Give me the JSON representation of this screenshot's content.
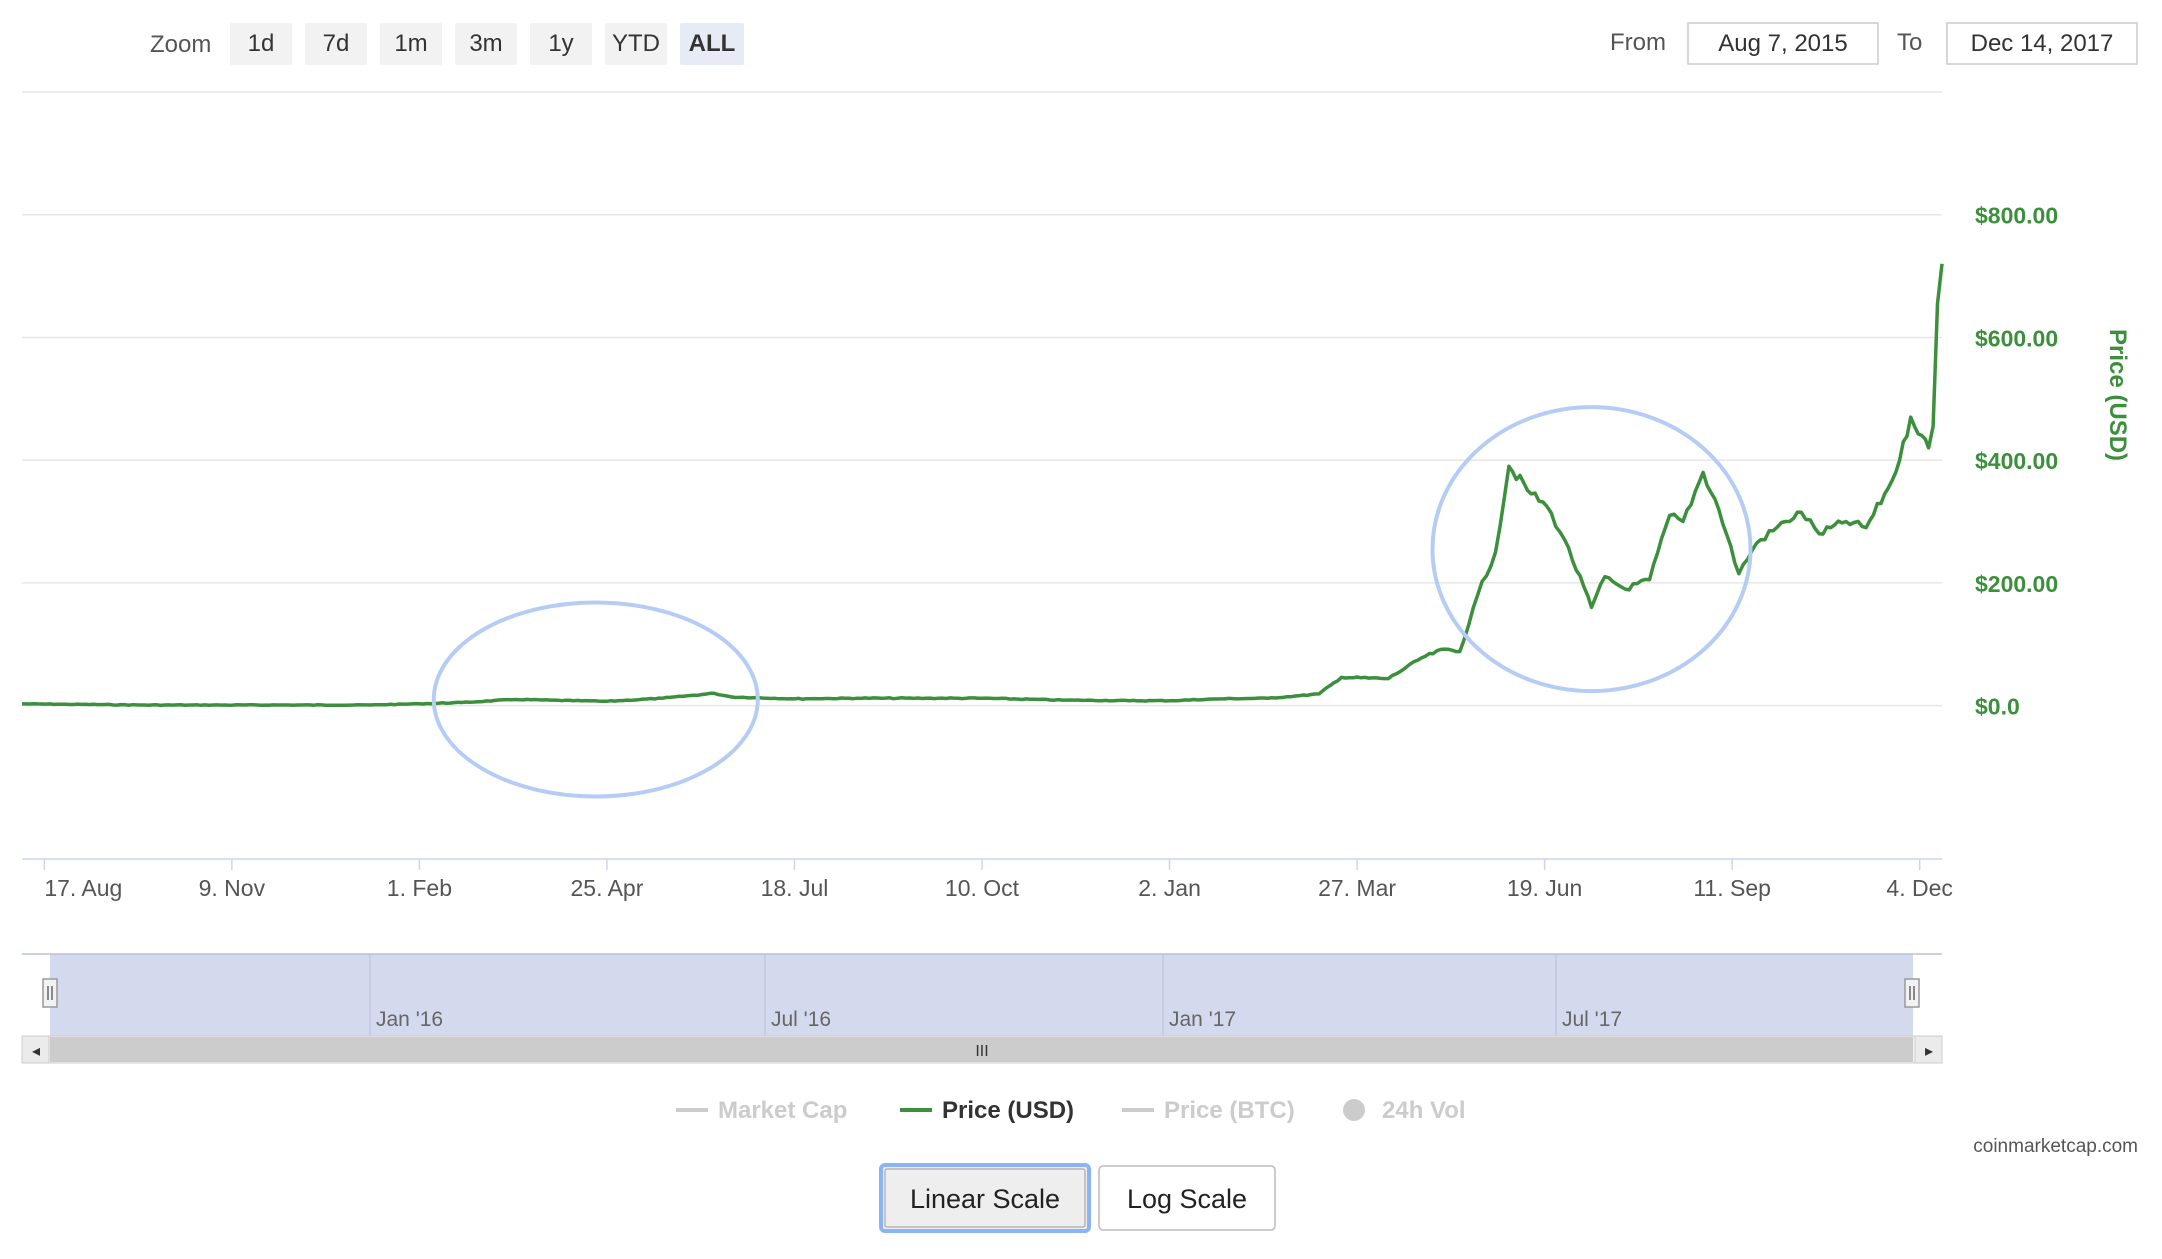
{
  "zoom": {
    "label": "Zoom",
    "buttons": [
      "1d",
      "7d",
      "1m",
      "3m",
      "1y",
      "YTD",
      "ALL"
    ],
    "selected": "ALL"
  },
  "range": {
    "from_label": "From",
    "from_value": "Aug 7, 2015",
    "to_label": "To",
    "to_value": "Dec 14, 2017"
  },
  "navigator": {
    "labels": [
      "Jan '16",
      "Jul '16",
      "Jan '17",
      "Jul '17"
    ],
    "scroll_thumb": "III",
    "scroll_left": "◂",
    "scroll_right": "▸"
  },
  "legend": [
    {
      "name": "Market Cap",
      "active": false
    },
    {
      "name": "Price (USD)",
      "active": true
    },
    {
      "name": "Price (BTC)",
      "active": false
    },
    {
      "name": "24h Vol",
      "active": false
    }
  ],
  "credits": "coinmarketcap.com",
  "scale_buttons": {
    "linear": "Linear Scale",
    "log": "Log Scale",
    "selected": "linear"
  },
  "colors": {
    "price_line": "#3c8f3c",
    "axis_label": "#3c8f3c",
    "annotation_circle": "#b5cdf5",
    "navigator_fill": "#d4daee",
    "button_bg": "#f2f2f2",
    "selected_button_bg": "#e6ebf5"
  },
  "chart_data": {
    "type": "line",
    "ylabel": "Price (USD)",
    "ylim": [
      -250,
      1000
    ],
    "yticks": [
      0,
      200,
      400,
      600,
      800
    ],
    "ytick_labels": [
      "$0.0",
      "$200.00",
      "$400.00",
      "$600.00",
      "$800.00"
    ],
    "xlim": [
      "2015-08-07",
      "2017-12-14"
    ],
    "xticks": [
      "2015-08-17",
      "2015-11-09",
      "2016-02-01",
      "2016-04-25",
      "2016-07-18",
      "2016-10-10",
      "2017-01-02",
      "2017-03-27",
      "2017-06-19",
      "2017-09-11",
      "2017-12-04"
    ],
    "xtick_labels": [
      "17. Aug",
      "9. Nov",
      "1. Feb",
      "25. Apr",
      "18. Jul",
      "10. Oct",
      "2. Jan",
      "27. Mar",
      "19. Jun",
      "11. Sep",
      "4. Dec"
    ],
    "grid": true,
    "legend": "bottom",
    "series": [
      {
        "name": "Price (USD)",
        "x": [
          "2015-08-07",
          "2015-10-01",
          "2015-12-01",
          "2016-01-10",
          "2016-02-01",
          "2016-02-20",
          "2016-03-15",
          "2016-04-10",
          "2016-04-25",
          "2016-05-20",
          "2016-06-12",
          "2016-06-20",
          "2016-07-18",
          "2016-08-15",
          "2016-09-15",
          "2016-10-10",
          "2016-11-15",
          "2016-12-15",
          "2017-01-02",
          "2017-01-25",
          "2017-02-15",
          "2017-03-01",
          "2017-03-10",
          "2017-03-20",
          "2017-04-10",
          "2017-04-25",
          "2017-05-05",
          "2017-05-12",
          "2017-05-20",
          "2017-05-28",
          "2017-06-03",
          "2017-06-13",
          "2017-06-20",
          "2017-06-28",
          "2017-07-10",
          "2017-07-16",
          "2017-07-25",
          "2017-08-05",
          "2017-08-14",
          "2017-08-20",
          "2017-08-29",
          "2017-09-05",
          "2017-09-14",
          "2017-09-22",
          "2017-10-05",
          "2017-10-12",
          "2017-10-20",
          "2017-11-01",
          "2017-11-10",
          "2017-11-20",
          "2017-11-25",
          "2017-11-30",
          "2017-12-05",
          "2017-12-08",
          "2017-12-10",
          "2017-12-12",
          "2017-12-14"
        ],
        "y": [
          2.8,
          0.9,
          0.9,
          1,
          3,
          5,
          10,
          8,
          7,
          12,
          20,
          14,
          11,
          12,
          12,
          12,
          9,
          8,
          8,
          11,
          12,
          16,
          19,
          46,
          44,
          78,
          92,
          88,
          180,
          250,
          390,
          345,
          325,
          270,
          160,
          210,
          190,
          205,
          310,
          300,
          380,
          320,
          215,
          265,
          300,
          315,
          280,
          300,
          290,
          355,
          400,
          470,
          440,
          420,
          455,
          655,
          720
        ]
      }
    ],
    "annotations": [
      {
        "shape": "ellipse",
        "center_x": "2016-04-20",
        "center_y": 10,
        "note": ""
      },
      {
        "shape": "ellipse",
        "center_x": "2017-07-10",
        "center_y": 255,
        "note": ""
      }
    ]
  }
}
